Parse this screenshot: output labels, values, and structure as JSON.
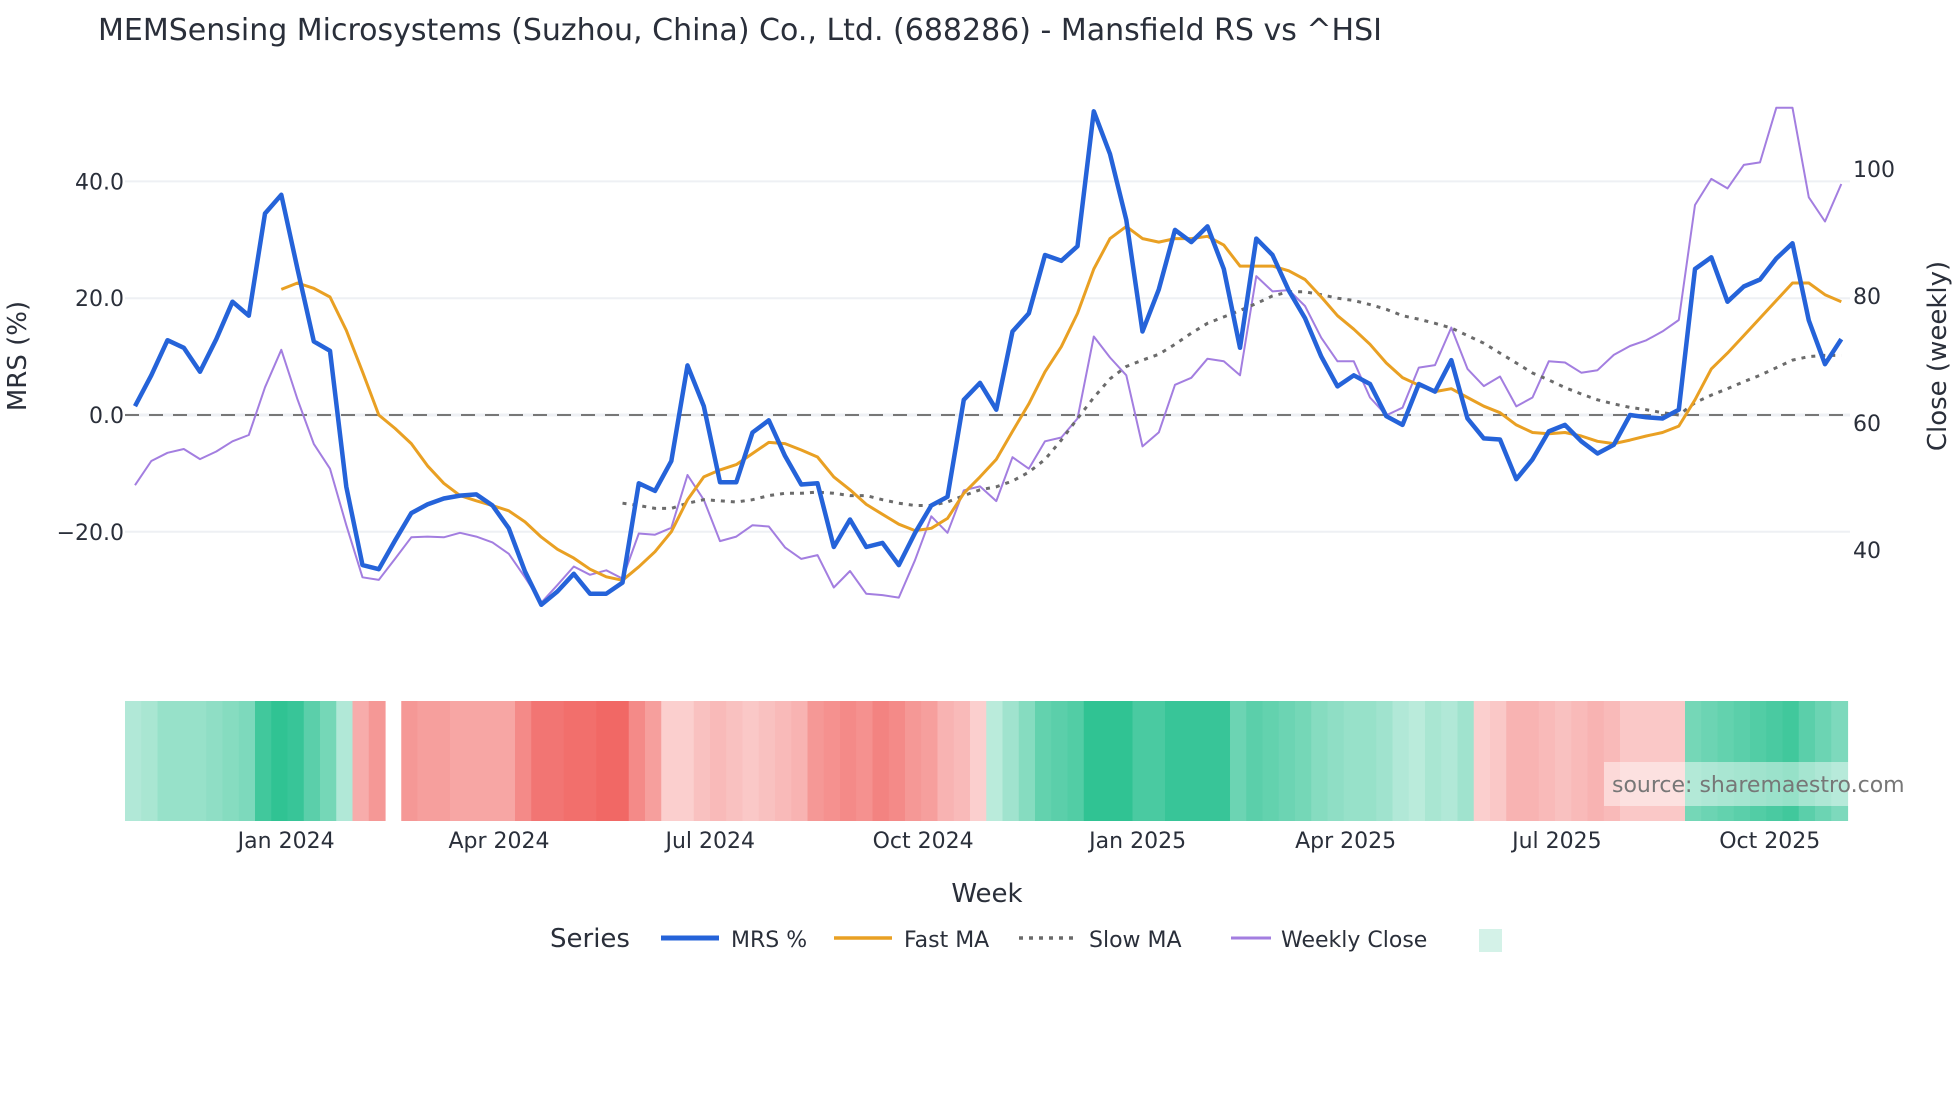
{
  "chart_data": {
    "type": "line",
    "title": "MEMSensing Microsystems (Suzhou, China) Co., Ltd. (688286) - Mansfield RS vs ^HSI",
    "xlabel": "Week",
    "ylabel": "MRS (%)",
    "y2label": "Close (weekly)",
    "ylim": [
      -36,
      56
    ],
    "y2lim": [
      24,
      112
    ],
    "yticks": [
      {
        "v": 40,
        "label": "40.0"
      },
      {
        "v": 20,
        "label": "20.0"
      },
      {
        "v": 0,
        "label": "0.0"
      },
      {
        "v": -20,
        "label": "−20.0"
      }
    ],
    "y2ticks": [
      {
        "v": 100,
        "label": "100"
      },
      {
        "v": 80,
        "label": "80"
      },
      {
        "v": 60,
        "label": "60"
      },
      {
        "v": 40,
        "label": "40"
      }
    ],
    "x_start": "2023-10-27",
    "x_step": "1 week",
    "xticks": [
      {
        "week": 9.3,
        "label": "Jan 2024"
      },
      {
        "week": 22.4,
        "label": "Apr 2024"
      },
      {
        "week": 35.4,
        "label": "Jul 2024"
      },
      {
        "week": 48.5,
        "label": "Oct 2024"
      },
      {
        "week": 61.7,
        "label": "Jan 2025"
      },
      {
        "week": 74.5,
        "label": "Apr 2025"
      },
      {
        "week": 87.5,
        "label": "Jul 2025"
      },
      {
        "week": 100.6,
        "label": "Oct 2025"
      }
    ],
    "legend_title": "Series",
    "legend_placement": "bottom-center",
    "series": [
      {
        "name": "MRS %",
        "axis": "left",
        "color": "#2563d9",
        "values": [
          1.5,
          6.8,
          12.8,
          11.5,
          7.4,
          13,
          19.4,
          17,
          34.5,
          37.7,
          25,
          12.6,
          11,
          -12.3,
          -25.7,
          -26.4,
          -21.5,
          -16.8,
          -15.3,
          -14.3,
          -13.8,
          -13.6,
          -15.5,
          -19.4,
          -26.8,
          -32.5,
          -30.2,
          -27.2,
          -30.6,
          -30.6,
          -28.7,
          -11.7,
          -13,
          -7.9,
          8.5,
          1.5,
          -11.5,
          -11.5,
          -3,
          -0.9,
          -7,
          -11.9,
          -11.7,
          -22.6,
          -17.9,
          -22.6,
          -21.9,
          -25.7,
          -20.2,
          -15.5,
          -14,
          2.6,
          5.5,
          0.9,
          14.3,
          17.4,
          27.4,
          26.4,
          28.9,
          52,
          44.7,
          33.4,
          14.3,
          21.5,
          31.7,
          29.6,
          32.3,
          25,
          11.5,
          30.2,
          27.4,
          21.3,
          16.6,
          10,
          4.9,
          6.8,
          5.3,
          -0.2,
          -1.7,
          5.3,
          4,
          9.4,
          -0.6,
          -4,
          -4.2,
          -11,
          -7.6,
          -2.8,
          -1.7,
          -4.5,
          -6.6,
          -5.1,
          0,
          -0.4,
          -0.6,
          0.9,
          25,
          27,
          19.4,
          22,
          23.2,
          26.8,
          29.4,
          16.2,
          8.7,
          13
        ]
      },
      {
        "name": "Fast MA",
        "axis": "left",
        "color": "#e9a023",
        "values": [
          null,
          null,
          null,
          null,
          null,
          null,
          null,
          null,
          null,
          21.5,
          22.6,
          21.7,
          20.2,
          14.5,
          7.4,
          0,
          -2.3,
          -4.9,
          -8.7,
          -11.7,
          -13.8,
          -14.7,
          -15.5,
          -16.4,
          -18.3,
          -20.9,
          -23,
          -24.5,
          -26.4,
          -27.7,
          -28.3,
          -26,
          -23.4,
          -20,
          -14.5,
          -10.6,
          -9.4,
          -8.5,
          -6.6,
          -4.7,
          -4.9,
          -6,
          -7.2,
          -10.6,
          -12.8,
          -15.3,
          -17,
          -18.7,
          -19.8,
          -19.4,
          -17.7,
          -13.4,
          -10.6,
          -7.6,
          -2.8,
          1.9,
          7.4,
          11.7,
          17.4,
          25,
          30.2,
          32.3,
          30.2,
          29.6,
          30.2,
          30.2,
          30.6,
          29.1,
          25.5,
          25.5,
          25.5,
          24.7,
          23.2,
          20.2,
          17,
          14.7,
          12.1,
          8.9,
          6.4,
          5.1,
          4,
          4.5,
          3,
          1.5,
          0.4,
          -1.7,
          -3,
          -3.2,
          -3,
          -3.6,
          -4.5,
          -4.9,
          -4.3,
          -3.6,
          -3,
          -1.9,
          2.6,
          7.9,
          10.6,
          13.6,
          16.6,
          19.6,
          22.6,
          22.6,
          20.6,
          19.4
        ]
      },
      {
        "name": "Slow MA",
        "axis": "left",
        "color": "#6b6b6b",
        "dash": true,
        "values": [
          null,
          null,
          null,
          null,
          null,
          null,
          null,
          null,
          null,
          null,
          null,
          null,
          null,
          null,
          null,
          null,
          null,
          null,
          null,
          null,
          null,
          null,
          null,
          null,
          null,
          null,
          null,
          null,
          null,
          null,
          -15.1,
          -15.5,
          -16,
          -16,
          -15.1,
          -14.5,
          -14.7,
          -14.9,
          -14.5,
          -13.8,
          -13.4,
          -13.4,
          -13.2,
          -13.4,
          -13.8,
          -13.8,
          -14.5,
          -15.1,
          -15.5,
          -15.5,
          -14.9,
          -13.8,
          -12.8,
          -12.3,
          -11.3,
          -9.8,
          -7.6,
          -4.3,
          -0.6,
          3,
          6.2,
          8.3,
          9.4,
          10.4,
          12.1,
          14,
          15.7,
          16.8,
          17.9,
          19.1,
          20.4,
          21.1,
          21.1,
          20.6,
          20,
          19.6,
          18.9,
          18.1,
          17,
          16.4,
          15.7,
          14.9,
          13.6,
          12.3,
          10.6,
          8.9,
          7.2,
          6,
          4.7,
          3.6,
          2.6,
          1.9,
          1.3,
          0.9,
          0.4,
          0,
          2.1,
          3.4,
          4.5,
          5.7,
          6.8,
          8.1,
          9.4,
          10,
          10.2,
          10.2
        ]
      },
      {
        "name": "Weekly Close",
        "axis": "right",
        "color": "#a37ee0",
        "values": [
          50.2,
          54,
          55.3,
          55.9,
          54.3,
          55.5,
          57.1,
          58.1,
          65.6,
          71.5,
          63.7,
          56.7,
          52.8,
          43.9,
          35.7,
          35.3,
          38.6,
          42,
          42.1,
          42,
          42.7,
          42.1,
          41.2,
          39.4,
          35.7,
          31.7,
          34.5,
          37.4,
          36.1,
          36.8,
          35.5,
          42.6,
          42.4,
          43.5,
          51.8,
          47.9,
          41.4,
          42.1,
          43.9,
          43.7,
          40.4,
          38.6,
          39.2,
          34.1,
          36.7,
          33.1,
          32.9,
          32.5,
          38.4,
          45.3,
          42.7,
          49.4,
          50,
          47.7,
          54.6,
          52.8,
          57.1,
          57.7,
          60.7,
          73.6,
          70.3,
          67.5,
          56.3,
          58.5,
          66,
          67.1,
          70.1,
          69.7,
          67.5,
          83.1,
          80.7,
          80.9,
          78.4,
          73.4,
          69.7,
          69.7,
          64,
          61.2,
          62.4,
          68.7,
          69.1,
          75,
          68.5,
          65.8,
          67.3,
          62.6,
          64,
          69.7,
          69.5,
          67.9,
          68.3,
          70.7,
          72.1,
          73,
          74.4,
          76.2,
          94.3,
          98.4,
          96.9,
          100.6,
          101,
          109.6,
          109.6,
          95.5,
          91.7,
          97.6
        ]
      }
    ],
    "heatmap": {
      "positive_color": "#27c08f",
      "negative_color": "#ef5350",
      "values": [
        0.2,
        0.25,
        0.35,
        0.35,
        0.35,
        0.4,
        0.45,
        0.5,
        0.85,
        0.95,
        0.9,
        0.7,
        0.55,
        0.2,
        -0.35,
        -0.5,
        null,
        -0.5,
        -0.45,
        -0.45,
        -0.4,
        -0.4,
        -0.4,
        -0.4,
        -0.6,
        -0.75,
        -0.75,
        -0.8,
        -0.8,
        -0.85,
        -0.85,
        -0.6,
        -0.45,
        -0.1,
        -0.1,
        -0.2,
        -0.25,
        -0.2,
        -0.15,
        -0.2,
        -0.25,
        -0.3,
        -0.5,
        -0.55,
        -0.6,
        -0.55,
        -0.65,
        -0.6,
        -0.5,
        -0.45,
        -0.3,
        -0.25,
        -0.1,
        0.15,
        0.3,
        0.45,
        0.65,
        0.7,
        0.75,
        0.95,
        0.95,
        0.95,
        0.8,
        0.8,
        0.9,
        0.9,
        0.9,
        0.9,
        0.6,
        0.7,
        0.65,
        0.6,
        0.55,
        0.45,
        0.4,
        0.35,
        0.35,
        0.3,
        0.2,
        0.15,
        0.25,
        0.2,
        0.3,
        -0.1,
        -0.15,
        -0.3,
        -0.3,
        -0.25,
        -0.2,
        -0.25,
        -0.3,
        -0.25,
        -0.15,
        -0.15,
        -0.15,
        -0.15,
        0.55,
        0.6,
        0.65,
        0.7,
        0.75,
        0.8,
        0.85,
        0.7,
        0.6,
        0.5
      ]
    },
    "legend_swatch_color": "#d4f2e8"
  },
  "watermark": "source: sharemaestro.com"
}
